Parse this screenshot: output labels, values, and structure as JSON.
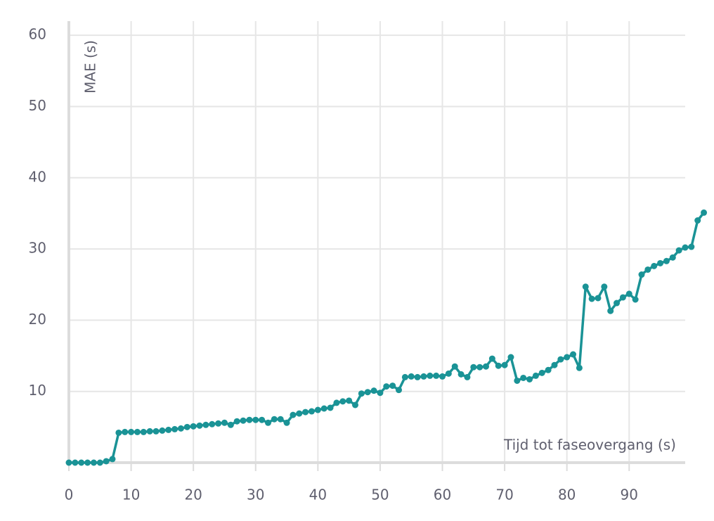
{
  "chart_data": {
    "type": "line",
    "x_label": "Tijd tot faseovergang (s)",
    "y_label": "MAE (s)",
    "x": [
      0,
      1,
      2,
      3,
      4,
      5,
      6,
      7,
      8,
      9,
      10,
      11,
      12,
      13,
      14,
      15,
      16,
      17,
      18,
      19,
      20,
      21,
      22,
      23,
      24,
      25,
      26,
      27,
      28,
      29,
      30,
      31,
      32,
      33,
      34,
      35,
      36,
      37,
      38,
      39,
      40,
      41,
      42,
      43,
      44,
      45,
      46,
      47,
      48,
      49,
      50,
      51,
      52,
      53,
      54,
      55,
      56,
      57,
      58,
      59,
      60,
      61,
      62,
      63,
      64,
      65,
      66,
      67,
      68,
      69,
      70,
      71,
      72,
      73,
      74,
      75,
      76,
      77,
      78,
      79,
      80,
      81,
      82,
      83,
      84,
      85,
      86,
      87,
      88,
      89,
      90,
      91,
      92,
      93,
      94,
      95,
      96,
      97,
      98,
      99,
      100,
      101,
      102
    ],
    "series": [
      {
        "name": "MAE",
        "color": "#1a9396",
        "values": [
          0,
          0,
          0,
          0,
          0,
          0,
          0.2,
          0.5,
          4.2,
          4.3,
          4.3,
          4.3,
          4.3,
          4.4,
          4.4,
          4.5,
          4.6,
          4.7,
          4.8,
          5.0,
          5.1,
          5.2,
          5.3,
          5.4,
          5.5,
          5.6,
          5.3,
          5.8,
          5.9,
          6.0,
          6.0,
          6.0,
          5.6,
          6.1,
          6.1,
          5.6,
          6.7,
          6.9,
          7.1,
          7.2,
          7.4,
          7.6,
          7.7,
          8.4,
          8.6,
          8.7,
          8.1,
          9.7,
          9.9,
          10.1,
          9.8,
          10.7,
          10.8,
          10.2,
          12.0,
          12.1,
          12.0,
          12.1,
          12.2,
          12.2,
          12.1,
          12.5,
          13.5,
          12.4,
          12.0,
          13.4,
          13.4,
          13.5,
          14.6,
          13.6,
          13.7,
          14.8,
          11.5,
          11.9,
          11.7,
          12.2,
          12.6,
          13.0,
          13.7,
          14.5,
          14.8,
          15.2,
          13.3,
          24.7,
          23.0,
          23.1,
          24.7,
          21.3,
          22.4,
          23.2,
          23.7,
          22.9,
          26.4,
          27.1,
          27.6,
          28.0,
          28.3,
          28.8,
          29.8,
          30.2,
          30.3,
          34.0,
          35.1
        ]
      }
    ],
    "xlim": [
      0,
      99
    ],
    "ylim": [
      0,
      61
    ],
    "xticks": [
      0,
      10,
      20,
      30,
      40,
      50,
      60,
      70,
      80,
      90
    ],
    "yticks": [
      10,
      20,
      30,
      40,
      50,
      60
    ],
    "grid": true
  }
}
